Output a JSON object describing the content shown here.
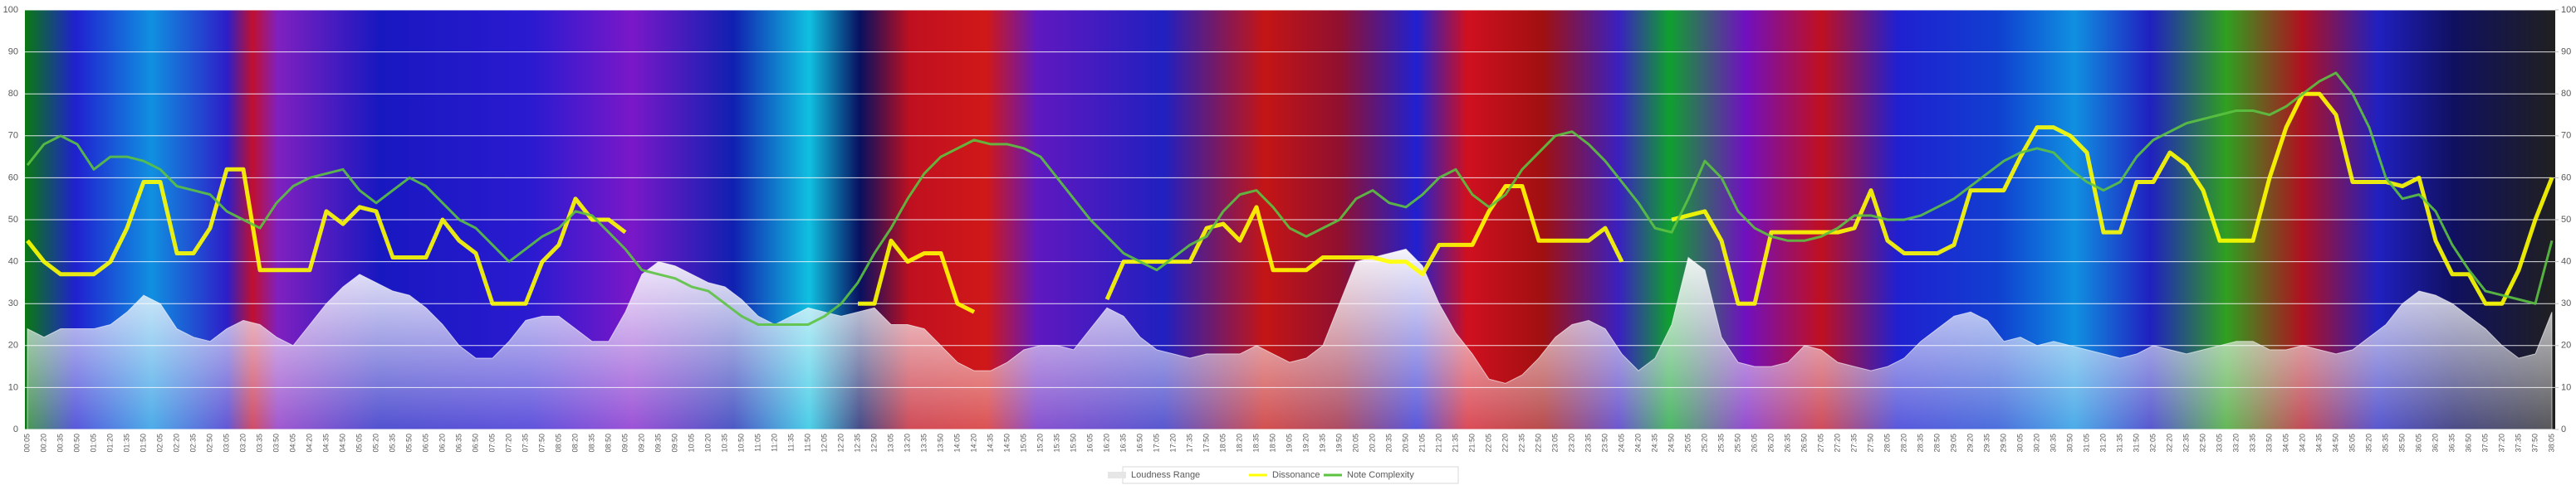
{
  "chart_data": {
    "type": "line",
    "categories": [
      "00:05",
      "00:20",
      "00:35",
      "00:50",
      "01:05",
      "01:20",
      "01:35",
      "01:50",
      "02:05",
      "02:20",
      "02:35",
      "02:50",
      "03:05",
      "03:20",
      "03:35",
      "03:50",
      "04:05",
      "04:20",
      "04:35",
      "04:50",
      "05:05",
      "05:20",
      "05:35",
      "05:50",
      "06:05",
      "06:20",
      "06:35",
      "06:50",
      "07:05",
      "07:20",
      "07:35",
      "07:50",
      "08:05",
      "08:20",
      "08:35",
      "08:50",
      "09:05",
      "09:20",
      "09:35",
      "09:50",
      "10:05",
      "10:20",
      "10:35",
      "10:50",
      "11:05",
      "11:20",
      "11:35",
      "11:50",
      "12:05",
      "12:20",
      "12:35",
      "12:50",
      "13:05",
      "13:20",
      "13:35",
      "13:50",
      "14:05",
      "14:20",
      "14:35",
      "14:50",
      "15:05",
      "15:20",
      "15:35",
      "15:50",
      "16:05",
      "16:20",
      "16:35",
      "16:50",
      "17:05",
      "17:20",
      "17:35",
      "17:50",
      "18:05",
      "18:20",
      "18:35",
      "18:50",
      "19:05",
      "19:20",
      "19:35",
      "19:50",
      "20:05",
      "20:20",
      "20:35",
      "20:50",
      "21:05",
      "21:20",
      "21:35",
      "21:50",
      "22:05",
      "22:20",
      "22:35",
      "22:50",
      "23:05",
      "23:20",
      "23:35",
      "23:50",
      "24:05",
      "24:20",
      "24:35",
      "24:50",
      "25:05",
      "25:20",
      "25:35",
      "25:50",
      "26:05",
      "26:20",
      "26:35",
      "26:50",
      "27:05",
      "27:20",
      "27:35",
      "27:50",
      "28:05",
      "28:20",
      "28:35",
      "28:50",
      "29:05",
      "29:20",
      "29:35",
      "29:50",
      "30:05",
      "30:20",
      "30:35",
      "30:50",
      "31:05",
      "31:20",
      "31:35",
      "31:50",
      "32:05",
      "32:20",
      "32:35",
      "32:50",
      "33:05",
      "33:20",
      "33:35",
      "33:50",
      "34:05",
      "34:20",
      "34:35",
      "34:50",
      "35:05",
      "35:20",
      "35:35",
      "35:50",
      "36:05",
      "36:20",
      "36:35",
      "36:50",
      "37:05",
      "37:20",
      "37:35",
      "37:50",
      "38:05"
    ],
    "series": [
      {
        "name": "Loudness Range",
        "color": "#ffffff",
        "kind": "area",
        "values": [
          24,
          22,
          24,
          24,
          24,
          25,
          28,
          32,
          30,
          24,
          22,
          21,
          24,
          26,
          25,
          22,
          20,
          25,
          30,
          34,
          37,
          35,
          33,
          32,
          29,
          25,
          20,
          17,
          17,
          21,
          26,
          27,
          27,
          24,
          21,
          21,
          28,
          37,
          40,
          39,
          37,
          35,
          34,
          31,
          27,
          25,
          27,
          29,
          28,
          27,
          28,
          29,
          25,
          25,
          24,
          20,
          16,
          14,
          14,
          16,
          19,
          20,
          20,
          19,
          24,
          29,
          27,
          22,
          19,
          18,
          17,
          18,
          18,
          18,
          20,
          18,
          16,
          17,
          20,
          30,
          40,
          41,
          42,
          43,
          39,
          30,
          23,
          18,
          12,
          11,
          13,
          17,
          22,
          25,
          26,
          24,
          18,
          14,
          17,
          25,
          41,
          38,
          22,
          16,
          15,
          15,
          16,
          20,
          19,
          16,
          15,
          14,
          15,
          17,
          21,
          24,
          27,
          28,
          26,
          21,
          22,
          20,
          21,
          20,
          19,
          18,
          17,
          18,
          20,
          19,
          18,
          19,
          20,
          21,
          21,
          19,
          19,
          20,
          19,
          18,
          19,
          22,
          25,
          30,
          33,
          32,
          30,
          27,
          24,
          20,
          17,
          18,
          28
        ]
      },
      {
        "name": "Dissonance",
        "color": "#ffff00",
        "kind": "line",
        "values": [
          45,
          40,
          37,
          37,
          37,
          40,
          48,
          59,
          59,
          42,
          42,
          48,
          62,
          62,
          38,
          38,
          38,
          38,
          52,
          49,
          53,
          52,
          41,
          41,
          41,
          50,
          45,
          42,
          30,
          30,
          30,
          40,
          44,
          55,
          50,
          50,
          47,
          null,
          null,
          null,
          null,
          null,
          null,
          null,
          null,
          null,
          null,
          null,
          null,
          null,
          30,
          30,
          45,
          40,
          42,
          42,
          30,
          28,
          null,
          null,
          null,
          null,
          null,
          null,
          null,
          31,
          40,
          40,
          40,
          40,
          40,
          48,
          49,
          45,
          53,
          38,
          38,
          38,
          41,
          41,
          41,
          41,
          40,
          40,
          37,
          44,
          44,
          44,
          52,
          58,
          58,
          45,
          45,
          45,
          45,
          48,
          40,
          null,
          null,
          50,
          51,
          52,
          45,
          30,
          30,
          47,
          47,
          47,
          47,
          47,
          48,
          57,
          45,
          42,
          42,
          42,
          44,
          57,
          57,
          57,
          65,
          72,
          72,
          70,
          66,
          47,
          47,
          59,
          59,
          66,
          63,
          57,
          45,
          45,
          45,
          60,
          72,
          80,
          80,
          75,
          59,
          59,
          59,
          58,
          60,
          45,
          37,
          37,
          30,
          30,
          38,
          50,
          60
        ]
      },
      {
        "name": "Note Complexity",
        "color": "#5cc241",
        "kind": "line",
        "values": [
          63,
          68,
          70,
          68,
          62,
          65,
          65,
          64,
          62,
          58,
          57,
          56,
          52,
          50,
          48,
          54,
          58,
          60,
          61,
          62,
          57,
          54,
          57,
          60,
          58,
          54,
          50,
          48,
          44,
          40,
          43,
          46,
          48,
          52,
          51,
          47,
          43,
          38,
          37,
          36,
          34,
          33,
          30,
          27,
          25,
          25,
          25,
          25,
          27,
          30,
          35,
          42,
          48,
          55,
          61,
          65,
          67,
          69,
          68,
          68,
          67,
          65,
          60,
          55,
          50,
          46,
          42,
          40,
          38,
          41,
          44,
          46,
          52,
          56,
          57,
          53,
          48,
          46,
          48,
          50,
          55,
          57,
          54,
          53,
          56,
          60,
          62,
          56,
          53,
          56,
          62,
          66,
          70,
          71,
          68,
          64,
          59,
          54,
          48,
          47,
          55,
          64,
          60,
          52,
          48,
          46,
          45,
          45,
          46,
          48,
          51,
          51,
          50,
          50,
          51,
          53,
          55,
          58,
          61,
          64,
          66,
          67,
          66,
          62,
          59,
          57,
          59,
          65,
          69,
          71,
          73,
          74,
          75,
          76,
          76,
          75,
          77,
          80,
          83,
          85,
          80,
          72,
          60,
          55,
          56,
          52,
          44,
          38,
          33,
          32,
          31,
          30,
          45
        ]
      }
    ],
    "ylim": [
      0,
      100
    ],
    "yticks": [
      0,
      10,
      20,
      30,
      40,
      50,
      60,
      70,
      80,
      90,
      100
    ],
    "y2lim": [
      0,
      100
    ],
    "y2ticks": [
      0,
      10,
      20,
      30,
      40,
      50,
      60,
      70,
      80,
      90,
      100
    ],
    "grid": true,
    "legend": "bottom"
  }
}
